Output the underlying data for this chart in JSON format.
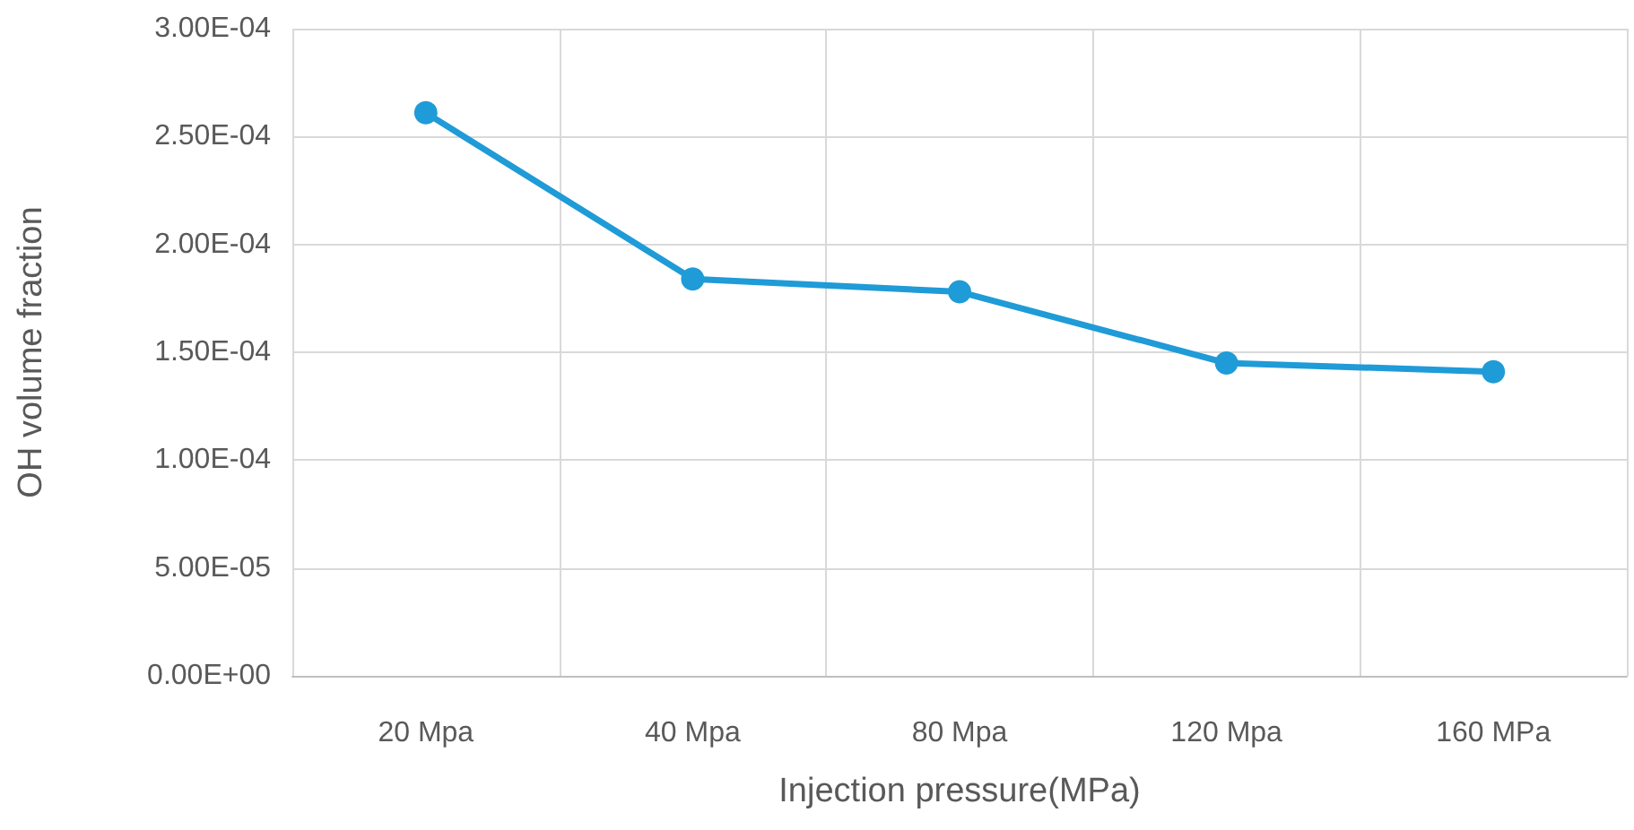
{
  "chart_data": {
    "type": "line",
    "xlabel": "Injection pressure(MPa)",
    "ylabel": "OH volume fraction",
    "categories": [
      "20 Mpa",
      "40 Mpa",
      "80 Mpa",
      "120 Mpa",
      "160 MPa"
    ],
    "series": [
      {
        "color": "#1f9bd7",
        "values": [
          0.000261,
          0.000184,
          0.000178,
          0.000145,
          0.000141
        ]
      }
    ],
    "ylim": [
      0,
      0.0003
    ],
    "yticks": [
      {
        "value": 0,
        "label": "0.00E+00"
      },
      {
        "value": 5e-05,
        "label": "5.00E-05"
      },
      {
        "value": 0.0001,
        "label": "1.00E-04"
      },
      {
        "value": 0.00015,
        "label": "1.50E-04"
      },
      {
        "value": 0.0002,
        "label": "2.00E-04"
      },
      {
        "value": 0.00025,
        "label": "2.50E-04"
      },
      {
        "value": 0.0003,
        "label": "3.00E-04"
      }
    ],
    "grid": true,
    "marker": "circle",
    "line_style": "solid"
  }
}
